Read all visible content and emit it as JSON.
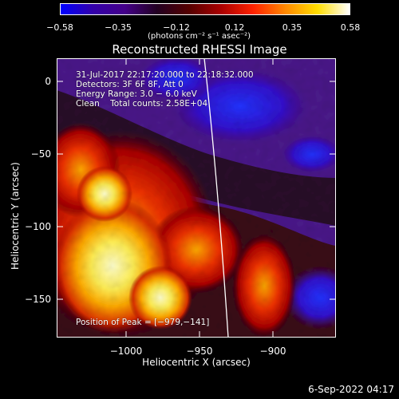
{
  "colorbar": {
    "ticks": [
      "−0.58",
      "−0.35",
      "−0.12",
      "0.12",
      "0.35",
      "0.58"
    ],
    "units": "(photons cm⁻² s⁻¹ asec⁻²)",
    "colors": [
      "#0000ff",
      "#3300aa",
      "#440088",
      "#220022",
      "#550000",
      "#aa0000",
      "#ff2200",
      "#ff8800",
      "#ffdd00",
      "#ffffff"
    ]
  },
  "title": "Reconstructed RHESSI Image",
  "info": {
    "time": "31-Jul-2017 22:17:20.000 to 22:18:32.000",
    "detectors": "Detectors: 3F 6F 8F, Att 0",
    "energy": "Energy Range: 3.0 − 6.0 keV",
    "clean": "Clean    Total counts: 2.58E+04",
    "peak": "Position of Peak = [−979,−141]"
  },
  "axes": {
    "xlabel": "Heliocentric X (arcsec)",
    "ylabel": "Heliocentric Y (arcsec)",
    "xticks": [
      "−1000",
      "−950",
      "−900"
    ],
    "yticks": [
      "0",
      "−50",
      "−100",
      "−150"
    ],
    "xrange": [
      -1045,
      -949
    ],
    "yrange": [
      -178,
      18
    ]
  },
  "timestamp": "6-Sep-2022 04:17"
}
